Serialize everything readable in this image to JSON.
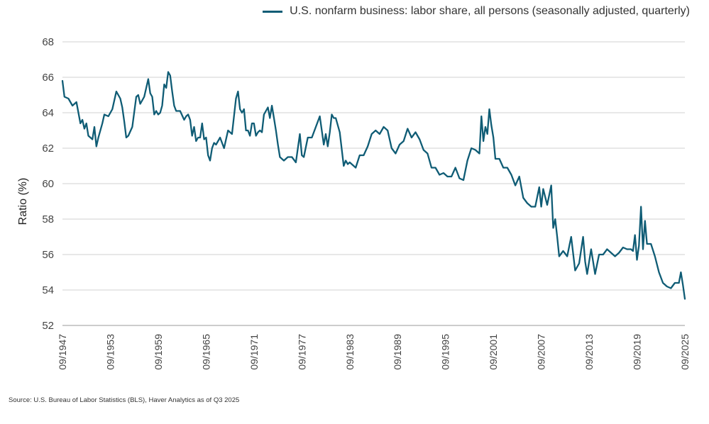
{
  "legend": {
    "series_name": "U.S. nonfarm business: labor share, all persons (seasonally adjusted, quarterly)"
  },
  "source": "Source: U.S. Bureau of Labor Statistics (BLS), Haver Analytics as of Q3 2025",
  "colors": {
    "line": "#0f5c75",
    "grid": "#d0d0d0"
  },
  "chart_data": {
    "type": "line",
    "title": "",
    "xlabel": "",
    "ylabel": "Ratio (%)",
    "ylim": [
      52,
      68
    ],
    "yticks": [
      52,
      54,
      56,
      58,
      60,
      62,
      64,
      66,
      68
    ],
    "xlim": [
      1947.75,
      2025.75
    ],
    "xticks": [
      {
        "x": 1947.75,
        "label": "09/1947"
      },
      {
        "x": 1953.75,
        "label": "09/1953"
      },
      {
        "x": 1959.75,
        "label": "09/1959"
      },
      {
        "x": 1965.75,
        "label": "09/1965"
      },
      {
        "x": 1971.75,
        "label": "09/1971"
      },
      {
        "x": 1977.75,
        "label": "09/1977"
      },
      {
        "x": 1983.75,
        "label": "09/1983"
      },
      {
        "x": 1989.75,
        "label": "09/1989"
      },
      {
        "x": 1995.75,
        "label": "09/1995"
      },
      {
        "x": 2001.75,
        "label": "09/2001"
      },
      {
        "x": 2007.75,
        "label": "09/2007"
      },
      {
        "x": 2013.75,
        "label": "09/2013"
      },
      {
        "x": 2019.75,
        "label": "09/2019"
      },
      {
        "x": 2025.75,
        "label": "09/2025"
      }
    ],
    "grid": true,
    "legend_position": "top-right",
    "series": [
      {
        "name": "U.S. nonfarm business: labor share, all persons (seasonally adjusted, quarterly)",
        "x": [
          1947.75,
          1948.0,
          1948.5,
          1949.0,
          1949.5,
          1950.0,
          1950.25,
          1950.5,
          1950.75,
          1951.0,
          1951.25,
          1951.5,
          1951.75,
          1952.0,
          1952.25,
          1952.5,
          1952.75,
          1953.0,
          1953.5,
          1954.0,
          1954.5,
          1955.0,
          1955.25,
          1955.5,
          1955.75,
          1956.0,
          1956.5,
          1957.0,
          1957.25,
          1957.5,
          1958.0,
          1958.5,
          1958.75,
          1959.0,
          1959.25,
          1959.5,
          1959.75,
          1960.0,
          1960.25,
          1960.5,
          1960.75,
          1961.0,
          1961.25,
          1961.5,
          1961.75,
          1962.0,
          1962.5,
          1963.0,
          1963.25,
          1963.5,
          1963.75,
          1964.0,
          1964.25,
          1964.5,
          1964.75,
          1965.0,
          1965.25,
          1965.5,
          1965.75,
          1966.0,
          1966.25,
          1966.5,
          1966.75,
          1967.0,
          1967.5,
          1968.0,
          1968.5,
          1969.0,
          1969.5,
          1969.75,
          1970.0,
          1970.25,
          1970.5,
          1970.75,
          1971.0,
          1971.25,
          1971.5,
          1971.75,
          1972.0,
          1972.25,
          1972.5,
          1972.75,
          1973.0,
          1973.25,
          1973.5,
          1973.75,
          1974.0,
          1974.25,
          1974.5,
          1974.75,
          1975.0,
          1975.5,
          1976.0,
          1976.5,
          1977.0,
          1977.25,
          1977.5,
          1977.75,
          1978.0,
          1978.5,
          1979.0,
          1979.5,
          1980.0,
          1980.25,
          1980.5,
          1980.75,
          1981.0,
          1981.25,
          1981.5,
          1981.75,
          1982.0,
          1982.5,
          1983.0,
          1983.25,
          1983.5,
          1983.75,
          1984.0,
          1984.5,
          1985.0,
          1985.5,
          1986.0,
          1986.5,
          1987.0,
          1987.5,
          1988.0,
          1988.5,
          1989.0,
          1989.5,
          1990.0,
          1990.5,
          1991.0,
          1991.5,
          1992.0,
          1992.5,
          1993.0,
          1993.5,
          1994.0,
          1994.5,
          1995.0,
          1995.5,
          1996.0,
          1996.5,
          1997.0,
          1997.5,
          1998.0,
          1998.5,
          1999.0,
          1999.5,
          2000.0,
          2000.25,
          2000.5,
          2000.75,
          2001.0,
          2001.25,
          2001.5,
          2001.75,
          2002.0,
          2002.5,
          2003.0,
          2003.5,
          2004.0,
          2004.5,
          2005.0,
          2005.5,
          2006.0,
          2006.5,
          2007.0,
          2007.5,
          2007.75,
          2008.0,
          2008.5,
          2009.0,
          2009.25,
          2009.5,
          2009.75,
          2010.0,
          2010.5,
          2011.0,
          2011.5,
          2012.0,
          2012.5,
          2013.0,
          2013.25,
          2013.5,
          2014.0,
          2014.5,
          2015.0,
          2015.5,
          2016.0,
          2016.5,
          2017.0,
          2017.5,
          2018.0,
          2018.5,
          2019.0,
          2019.25,
          2019.5,
          2019.75,
          2020.0,
          2020.25,
          2020.5,
          2020.75,
          2021.0,
          2021.5,
          2022.0,
          2022.5,
          2023.0,
          2023.5,
          2024.0,
          2024.5,
          2025.0,
          2025.25,
          2025.5,
          2025.75
        ],
        "values": [
          65.8,
          64.9,
          64.8,
          64.4,
          64.6,
          63.4,
          63.6,
          63.1,
          63.4,
          62.7,
          62.6,
          62.5,
          63.2,
          62.1,
          62.6,
          63.0,
          63.4,
          63.9,
          63.8,
          64.2,
          65.2,
          64.8,
          64.3,
          63.5,
          62.6,
          62.7,
          63.2,
          64.9,
          65.0,
          64.5,
          64.9,
          65.9,
          65.1,
          64.9,
          63.9,
          64.1,
          63.9,
          64.0,
          64.4,
          65.6,
          65.4,
          66.3,
          66.1,
          65.2,
          64.4,
          64.1,
          64.1,
          63.6,
          63.8,
          63.9,
          63.6,
          62.7,
          63.2,
          62.4,
          62.6,
          62.6,
          63.4,
          62.5,
          62.6,
          61.6,
          61.3,
          62.0,
          62.3,
          62.2,
          62.6,
          62.0,
          63.0,
          62.8,
          64.8,
          65.2,
          64.2,
          64.0,
          64.2,
          63.0,
          63.0,
          62.7,
          63.4,
          63.4,
          62.7,
          62.9,
          63.0,
          62.9,
          63.9,
          64.1,
          64.3,
          63.7,
          64.4,
          63.7,
          63.0,
          62.2,
          61.5,
          61.3,
          61.5,
          61.5,
          61.2,
          62.0,
          62.8,
          61.6,
          61.5,
          62.6,
          62.6,
          63.2,
          63.8,
          63.0,
          62.2,
          62.8,
          62.1,
          62.9,
          63.9,
          63.7,
          63.7,
          62.9,
          61.0,
          61.3,
          61.1,
          61.2,
          61.1,
          60.9,
          61.6,
          61.6,
          62.1,
          62.8,
          63.0,
          62.8,
          63.2,
          63.0,
          62.0,
          61.7,
          62.2,
          62.4,
          63.1,
          62.6,
          62.9,
          62.5,
          61.9,
          61.7,
          60.9,
          60.9,
          60.5,
          60.6,
          60.4,
          60.4,
          60.9,
          60.3,
          60.2,
          61.3,
          62.0,
          61.9,
          61.7,
          63.8,
          62.4,
          63.2,
          62.8,
          64.2,
          63.3,
          62.6,
          61.4,
          61.4,
          60.9,
          60.9,
          60.5,
          59.9,
          60.4,
          59.2,
          58.9,
          58.7,
          58.7,
          59.8,
          58.7,
          59.7,
          58.8,
          59.9,
          57.5,
          58.0,
          57.0,
          55.9,
          56.2,
          55.9,
          57.0,
          55.1,
          55.5,
          57.0,
          55.6,
          54.9,
          56.3,
          54.9,
          56.0,
          56.0,
          56.3,
          56.1,
          55.9,
          56.1,
          56.4,
          56.3,
          56.3,
          56.2,
          57.1,
          55.7,
          56.5,
          58.7,
          56.3,
          57.9,
          56.6,
          56.6,
          55.9,
          55.0,
          54.4,
          54.2,
          54.1,
          54.4,
          54.4,
          55.0,
          54.3,
          53.5
        ]
      }
    ]
  }
}
